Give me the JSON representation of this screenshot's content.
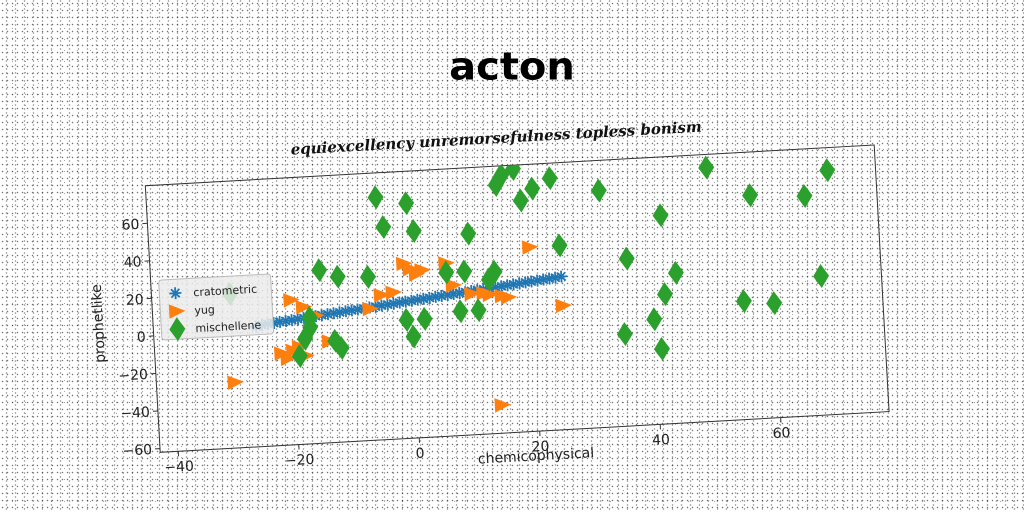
{
  "page": {
    "title": "acton"
  },
  "chart_data": {
    "type": "scatter",
    "title": "equiexcellency unremorsefulness topless bonism",
    "xlabel": "chemicophysical",
    "ylabel": "prophetlike",
    "xlim": [
      -43,
      78
    ],
    "ylim": [
      -62,
      80
    ],
    "xticks": [
      -40,
      -20,
      0,
      20,
      40,
      60
    ],
    "yticks": [
      -60,
      -40,
      -20,
      0,
      20,
      40,
      60
    ],
    "xtick_labels": [
      "−40",
      "−20",
      "0",
      "20",
      "40",
      "60"
    ],
    "ytick_labels": [
      "−60",
      "−40",
      "−20",
      "0",
      "20",
      "40",
      "60"
    ],
    "grid": false,
    "legend": "center-left",
    "series": [
      {
        "name": "cratometric",
        "marker": "star",
        "color": "#1f77b4",
        "points": [
          [
            -26,
            2
          ],
          [
            -25,
            2.5
          ],
          [
            -24,
            3
          ],
          [
            -23,
            3.3
          ],
          [
            -22,
            3.7
          ],
          [
            -21,
            4
          ],
          [
            -20,
            4.3
          ],
          [
            -19,
            4.7
          ],
          [
            -18,
            5
          ],
          [
            -17,
            5.4
          ],
          [
            -16,
            5.7
          ],
          [
            -15,
            6
          ],
          [
            -14,
            6.4
          ],
          [
            -13,
            6.7
          ],
          [
            -12,
            7
          ],
          [
            -11,
            7.4
          ],
          [
            -10,
            7.7
          ],
          [
            -9,
            8
          ],
          [
            -8,
            8.4
          ],
          [
            -7,
            8.7
          ],
          [
            -6,
            9
          ],
          [
            -5,
            9.4
          ],
          [
            -4,
            9.7
          ],
          [
            -3,
            10
          ],
          [
            -2,
            10.4
          ],
          [
            -1,
            10.7
          ],
          [
            0,
            11
          ],
          [
            1,
            11.4
          ],
          [
            2,
            11.7
          ],
          [
            3,
            12
          ],
          [
            4,
            12.4
          ],
          [
            5,
            12.7
          ],
          [
            6,
            13
          ],
          [
            7,
            13.4
          ],
          [
            8,
            13.7
          ],
          [
            9,
            14
          ],
          [
            10,
            14.4
          ],
          [
            11,
            14.7
          ],
          [
            12,
            15
          ],
          [
            13,
            15.4
          ],
          [
            14,
            15.7
          ],
          [
            15,
            16
          ],
          [
            16,
            16.4
          ],
          [
            17,
            16.7
          ],
          [
            18,
            17
          ],
          [
            19,
            17.4
          ],
          [
            20,
            17.7
          ],
          [
            21,
            18
          ],
          [
            22,
            18.4
          ],
          [
            23,
            18.7
          ],
          [
            24,
            19
          ],
          [
            25,
            19.4
          ]
        ]
      },
      {
        "name": "yug",
        "marker": "triangle-right",
        "color": "#ff7f0e",
        "points": [
          [
            -30,
            -27
          ],
          [
            -22,
            -13
          ],
          [
            -20,
            -12
          ],
          [
            -19,
            -10
          ],
          [
            -21,
            -16
          ],
          [
            -18,
            -15
          ],
          [
            -20,
            15
          ],
          [
            -18,
            11
          ],
          [
            -16,
            6
          ],
          [
            -14,
            -8
          ],
          [
            -7,
            8
          ],
          [
            -5,
            15
          ],
          [
            -3,
            16
          ],
          [
            -1,
            31
          ],
          [
            0,
            28
          ],
          [
            1,
            25
          ],
          [
            2,
            27
          ],
          [
            6,
            30
          ],
          [
            7,
            18
          ],
          [
            10,
            13
          ],
          [
            12,
            13
          ],
          [
            13,
            12
          ],
          [
            15,
            11
          ],
          [
            16,
            10
          ],
          [
            20,
            36
          ],
          [
            25,
            4
          ],
          [
            14,
            -47
          ]
        ]
      },
      {
        "name": "mischellene",
        "marker": "diamond",
        "color": "#2ca02c",
        "points": [
          [
            -30,
            20
          ],
          [
            -19,
            -15
          ],
          [
            -18,
            -6
          ],
          [
            -17,
            5
          ],
          [
            -17,
            0
          ],
          [
            -15,
            30
          ],
          [
            -13,
            -8
          ],
          [
            -12,
            -12
          ],
          [
            -12,
            26
          ],
          [
            -7,
            25
          ],
          [
            -5,
            67
          ],
          [
            -4,
            51
          ],
          [
            -1,
            1
          ],
          [
            0,
            -8
          ],
          [
            0,
            63
          ],
          [
            1,
            48
          ],
          [
            2,
            1
          ],
          [
            6,
            25
          ],
          [
            8,
            4
          ],
          [
            9,
            25
          ],
          [
            10,
            45
          ],
          [
            11,
            4
          ],
          [
            13,
            20
          ],
          [
            14,
            24
          ],
          [
            15,
            70
          ],
          [
            16,
            75
          ],
          [
            18,
            78
          ],
          [
            19,
            61
          ],
          [
            21,
            67
          ],
          [
            22,
            87
          ],
          [
            24,
            72
          ],
          [
            25,
            36
          ],
          [
            32,
            64
          ],
          [
            35,
            -13
          ],
          [
            36,
            27
          ],
          [
            40,
            -6
          ],
          [
            41,
            -22
          ],
          [
            42,
            7
          ],
          [
            42,
            49
          ],
          [
            44,
            18
          ],
          [
            50,
            73
          ],
          [
            55,
            1
          ],
          [
            57,
            57
          ],
          [
            60,
            -1
          ],
          [
            66,
            55
          ],
          [
            68,
            12
          ],
          [
            70,
            68
          ]
        ]
      }
    ]
  }
}
